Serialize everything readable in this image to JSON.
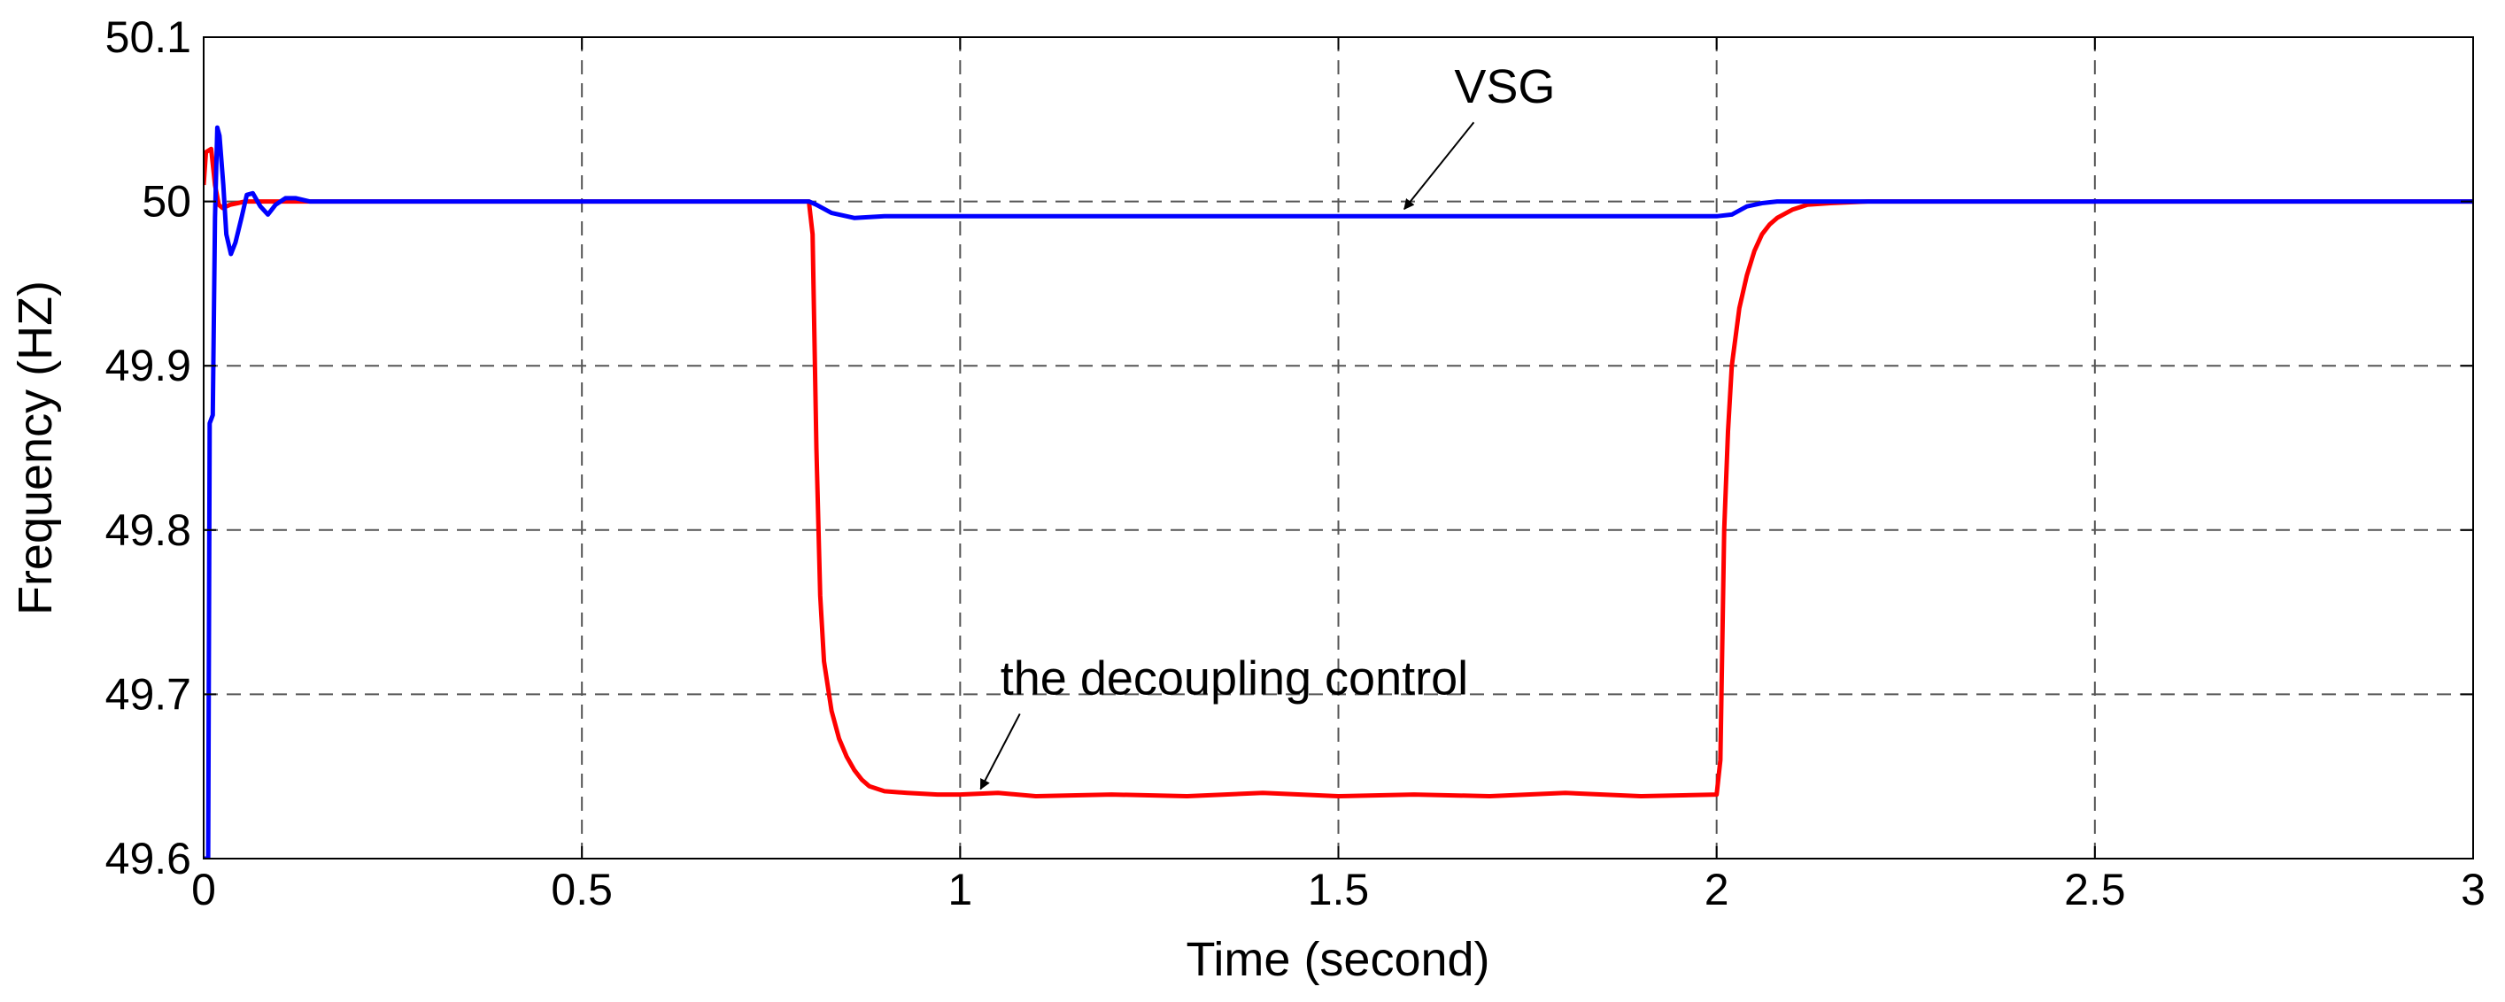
{
  "chart_data": {
    "type": "line",
    "title": "",
    "xlabel": "Time (second)",
    "ylabel": "Frequency (HZ)",
    "xlim": [
      0,
      3
    ],
    "ylim": [
      49.6,
      50.1
    ],
    "x_ticks": [
      0,
      0.5,
      1,
      1.5,
      2,
      2.5,
      3
    ],
    "x_tick_labels": [
      "0",
      "0.5",
      "1",
      "1.5",
      "2",
      "2.5",
      "3"
    ],
    "y_ticks": [
      49.6,
      49.7,
      49.8,
      49.9,
      50,
      50.1
    ],
    "y_tick_labels": [
      "49.6",
      "49.7",
      "49.8",
      "49.9",
      "50",
      "50.1"
    ],
    "grid": true,
    "grid_style": "dashed",
    "legend": "none",
    "colors": {
      "vsg": "#0000ff",
      "decoupling": "#ff0000",
      "grid": "#555555"
    },
    "series": [
      {
        "name": "VSG",
        "color": "#0000ff",
        "x": [
          0,
          0.004,
          0.006,
          0.008,
          0.012,
          0.015,
          0.018,
          0.021,
          0.026,
          0.03,
          0.036,
          0.042,
          0.05,
          0.057,
          0.065,
          0.075,
          0.085,
          0.095,
          0.108,
          0.122,
          0.14,
          0.16,
          0.8,
          0.81,
          0.83,
          0.86,
          0.9,
          1.0,
          1.3,
          1.6,
          1.9,
          2.0,
          2.02,
          2.04,
          2.06,
          2.08,
          2.1,
          2.15,
          3.0
        ],
        "values": [
          49.6,
          49.6,
          49.6,
          49.865,
          49.87,
          49.99,
          50.045,
          50.04,
          50.01,
          49.98,
          49.968,
          49.975,
          49.99,
          50.004,
          50.005,
          49.997,
          49.992,
          49.998,
          50.002,
          50.002,
          50.0,
          50.0,
          50.0,
          49.998,
          49.993,
          49.99,
          49.991,
          49.991,
          49.991,
          49.991,
          49.991,
          49.991,
          49.992,
          49.997,
          49.999,
          50.0,
          50.0,
          50.0,
          50.0
        ]
      },
      {
        "name": "the decoupling control",
        "color": "#ff0000",
        "x": [
          0,
          0.003,
          0.01,
          0.015,
          0.02,
          0.025,
          0.035,
          0.045,
          0.055,
          0.065,
          0.08,
          0.1,
          0.8,
          0.805,
          0.81,
          0.815,
          0.82,
          0.83,
          0.84,
          0.85,
          0.86,
          0.87,
          0.88,
          0.9,
          0.93,
          0.97,
          1.0,
          1.05,
          1.1,
          1.2,
          1.3,
          1.4,
          1.5,
          1.6,
          1.7,
          1.8,
          1.9,
          2.0,
          2.005,
          2.01,
          2.015,
          2.02,
          2.03,
          2.04,
          2.05,
          2.06,
          2.07,
          2.08,
          2.1,
          2.12,
          2.15,
          2.2,
          3.0
        ],
        "values": [
          50.01,
          50.03,
          50.032,
          50.01,
          49.998,
          49.996,
          49.998,
          49.999,
          50.0,
          50.0,
          50.0,
          50.0,
          50.0,
          49.98,
          49.85,
          49.76,
          49.72,
          49.69,
          49.673,
          49.662,
          49.654,
          49.648,
          49.644,
          49.641,
          49.64,
          49.639,
          49.639,
          49.64,
          49.638,
          49.639,
          49.638,
          49.64,
          49.638,
          49.639,
          49.638,
          49.64,
          49.638,
          49.639,
          49.66,
          49.8,
          49.86,
          49.9,
          49.935,
          49.955,
          49.97,
          49.98,
          49.986,
          49.99,
          49.995,
          49.998,
          49.999,
          50.0,
          50.0
        ]
      }
    ],
    "annotations": [
      {
        "text": "VSG",
        "arrow_to_x": 1.58,
        "arrow_to_y": 49.991,
        "text_x": 1.7,
        "text_y": 50.06
      },
      {
        "text": "the decoupling control",
        "arrow_to_x": 1.02,
        "arrow_to_y": 49.638,
        "text_x": 1.1,
        "text_y": 49.7
      }
    ]
  }
}
